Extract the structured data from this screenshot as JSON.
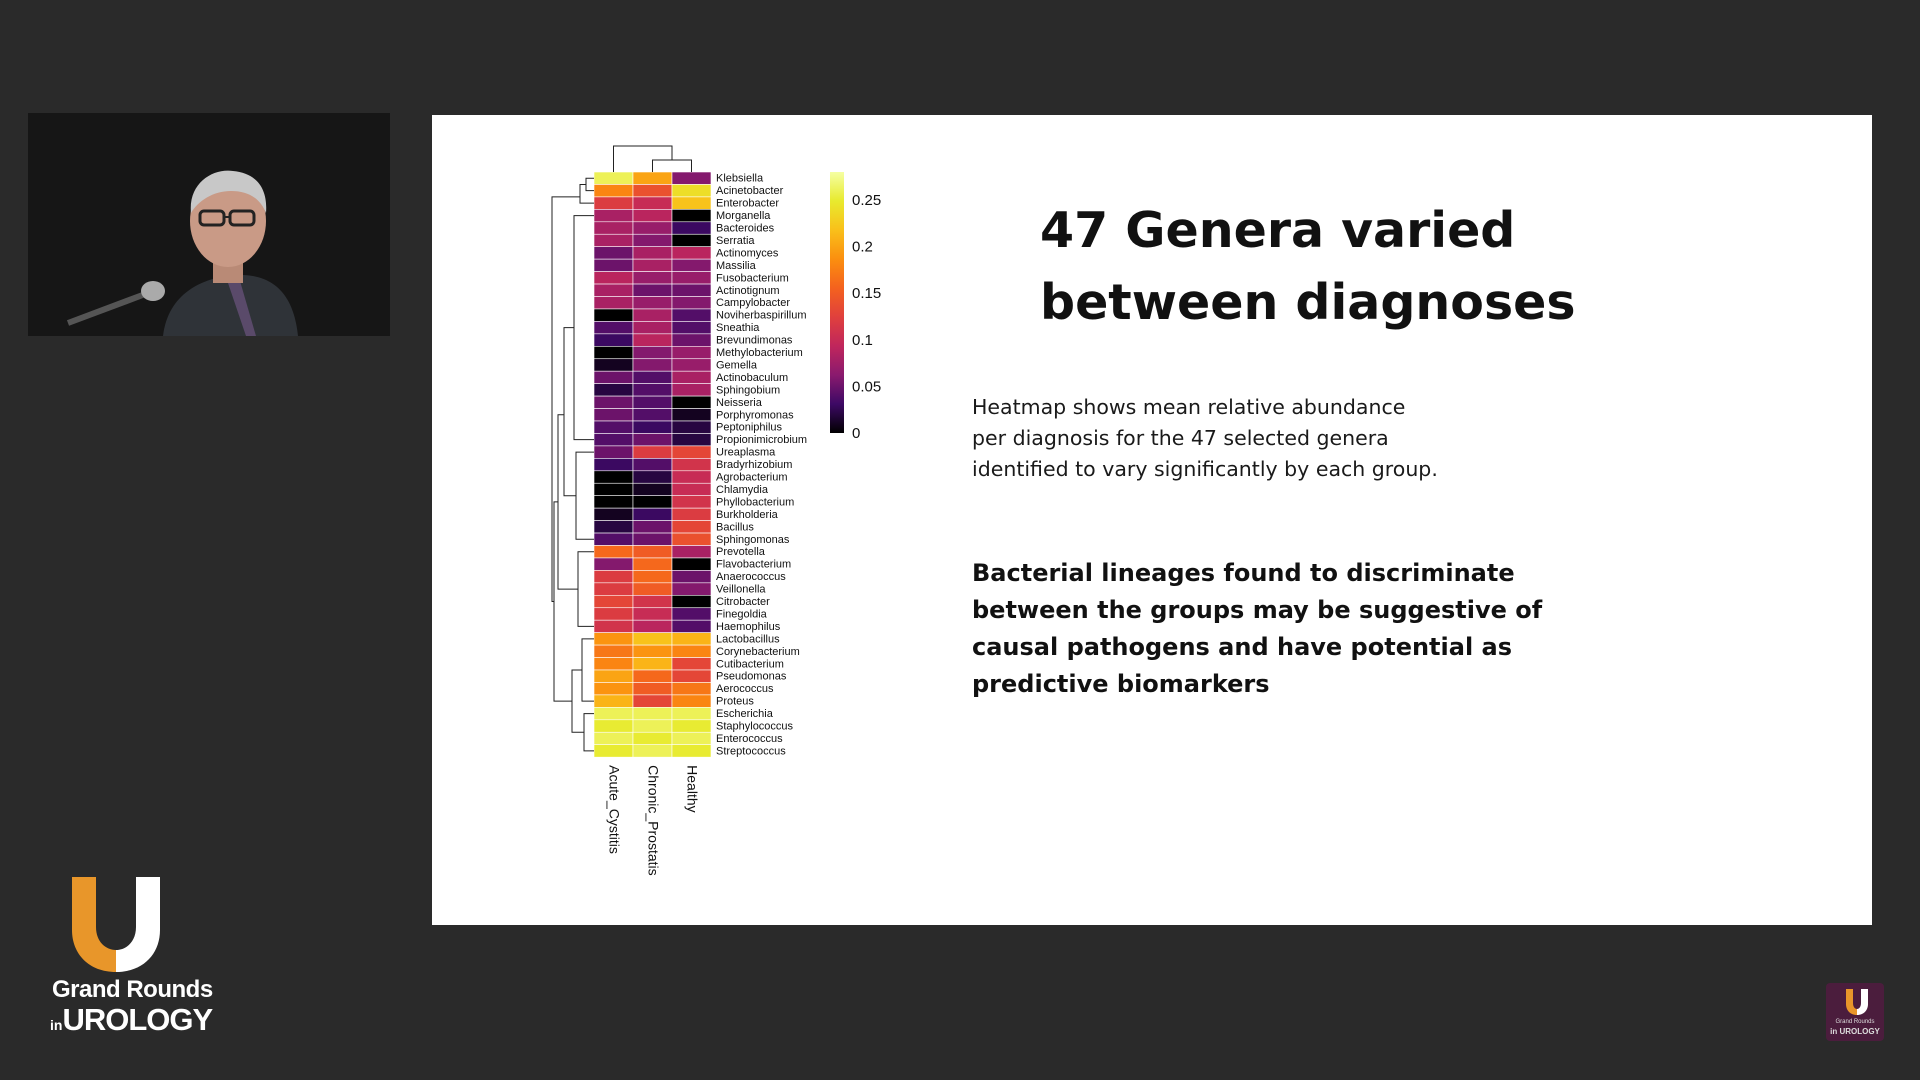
{
  "slide": {
    "title_line1": "47 Genera varied",
    "title_line2": "between diagnoses",
    "description_lines": [
      "Heatmap shows mean relative abundance",
      "per diagnosis for the 47 selected genera",
      "identified to vary significantly by each group."
    ],
    "conclusion_lines": [
      "Bacterial lineages found to discriminate",
      "between the groups may be suggestive of",
      "causal pathogens and have potential as",
      "predictive biomarkers"
    ]
  },
  "chart_data": {
    "type": "heatmap",
    "columns": [
      "Acute_Cystitis",
      "Chronic_Prostatis",
      "Healthy"
    ],
    "rows": [
      "Klebsiella",
      "Acinetobacter",
      "Enterobacter",
      "Morganella",
      "Bacteroides",
      "Serratia",
      "Actinomyces",
      "Massilia",
      "Fusobacterium",
      "Actinotignum",
      "Campylobacter",
      "Noviherbaspirillum",
      "Sneathia",
      "Brevundimonas",
      "Methylobacterium",
      "Gemella",
      "Actinobaculum",
      "Sphingobium",
      "Neisseria",
      "Porphyromonas",
      "Peptoniphilus",
      "Propionimicrobium",
      "Ureaplasma",
      "Bradyrhizobium",
      "Agrobacterium",
      "Chlamydia",
      "Phyllobacterium",
      "Burkholderia",
      "Bacillus",
      "Sphingomonas",
      "Prevotella",
      "Flavobacterium",
      "Anaerococcus",
      "Veillonella",
      "Citrobacter",
      "Finegoldia",
      "Haemophilus",
      "Lactobacillus",
      "Corynebacterium",
      "Cutibacterium",
      "Pseudomonas",
      "Aerococcus",
      "Proteus",
      "Escherichia",
      "Staphylococcus",
      "Enterococcus",
      "Streptococcus"
    ],
    "values": [
      [
        0.26,
        0.2,
        0.06
      ],
      [
        0.18,
        0.14,
        0.24
      ],
      [
        0.12,
        0.1,
        0.22
      ],
      [
        0.08,
        0.09,
        0.0
      ],
      [
        0.08,
        0.07,
        0.03
      ],
      [
        0.08,
        0.06,
        0.0
      ],
      [
        0.05,
        0.08,
        0.09
      ],
      [
        0.05,
        0.08,
        0.06
      ],
      [
        0.09,
        0.07,
        0.07
      ],
      [
        0.08,
        0.05,
        0.05
      ],
      [
        0.08,
        0.07,
        0.06
      ],
      [
        0.0,
        0.08,
        0.04
      ],
      [
        0.04,
        0.08,
        0.04
      ],
      [
        0.03,
        0.09,
        0.05
      ],
      [
        0.0,
        0.06,
        0.07
      ],
      [
        0.01,
        0.06,
        0.07
      ],
      [
        0.05,
        0.04,
        0.08
      ],
      [
        0.02,
        0.04,
        0.08
      ],
      [
        0.05,
        0.04,
        0.0
      ],
      [
        0.05,
        0.04,
        0.01
      ],
      [
        0.04,
        0.03,
        0.02
      ],
      [
        0.04,
        0.05,
        0.02
      ],
      [
        0.05,
        0.12,
        0.13
      ],
      [
        0.03,
        0.04,
        0.11
      ],
      [
        0.0,
        0.02,
        0.1
      ],
      [
        0.0,
        0.01,
        0.1
      ],
      [
        0.0,
        0.0,
        0.11
      ],
      [
        0.01,
        0.03,
        0.12
      ],
      [
        0.02,
        0.05,
        0.13
      ],
      [
        0.04,
        0.05,
        0.14
      ],
      [
        0.16,
        0.15,
        0.08
      ],
      [
        0.06,
        0.16,
        0.0
      ],
      [
        0.12,
        0.16,
        0.05
      ],
      [
        0.12,
        0.15,
        0.06
      ],
      [
        0.13,
        0.11,
        0.0
      ],
      [
        0.12,
        0.1,
        0.04
      ],
      [
        0.11,
        0.09,
        0.04
      ],
      [
        0.19,
        0.22,
        0.21
      ],
      [
        0.17,
        0.19,
        0.18
      ],
      [
        0.18,
        0.21,
        0.13
      ],
      [
        0.2,
        0.16,
        0.13
      ],
      [
        0.19,
        0.15,
        0.17
      ],
      [
        0.21,
        0.13,
        0.18
      ],
      [
        0.26,
        0.26,
        0.26
      ],
      [
        0.25,
        0.26,
        0.25
      ],
      [
        0.26,
        0.25,
        0.26
      ],
      [
        0.25,
        0.26,
        0.25
      ]
    ],
    "color_scale": {
      "min": 0,
      "max": 0.28,
      "ticks": [
        "0",
        "0.05",
        "0.1",
        "0.15",
        "0.2",
        "0.25"
      ],
      "tick_values": [
        0,
        0.05,
        0.1,
        0.15,
        0.2,
        0.25
      ],
      "colors": [
        "#000000",
        "#3d0965",
        "#8a1a6e",
        "#c0265c",
        "#e0403d",
        "#f4621e",
        "#fb8f0f",
        "#f9c01a",
        "#e8ea2e",
        "#f5ffa3"
      ]
    },
    "row_dendrogram": true,
    "column_dendrogram": true
  },
  "branding": {
    "show_name_line1": "Grand Rounds",
    "show_name_in": "in",
    "show_name_line2": "UROLOGY",
    "mini_logo_line1": "Grand Rounds",
    "mini_logo_line2": "in UROLOGY",
    "colors": {
      "orange": "#e8962a",
      "purple": "#4b1d3d",
      "background": "#2a2a2a"
    }
  },
  "speaker_video": {
    "present": true
  }
}
